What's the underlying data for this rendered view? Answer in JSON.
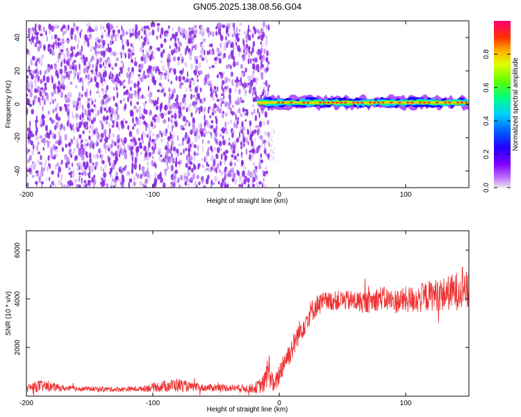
{
  "title": "GN05.2025.138.08.56.G04",
  "colors": {
    "trace": "#ee3333",
    "noise_cloud": "#8a2be2",
    "colormap": [
      "#e8e8e8",
      "#b000ff",
      "#2200ff",
      "#00bfff",
      "#00ff66",
      "#d8ff00",
      "#ffae00",
      "#ff2020",
      "#ff007f"
    ]
  },
  "chart_data": [
    {
      "type": "heatmap",
      "name": "spectrogram",
      "xlabel": "Height of straight line (km)",
      "ylabel": "Frequency (Hz)",
      "xlim": [
        -200,
        150
      ],
      "ylim": [
        -50,
        50
      ],
      "xticks": [
        -200,
        -100,
        0,
        100
      ],
      "yticks": [
        -40,
        -20,
        0,
        20,
        40
      ],
      "colorbar": {
        "label": "Normalized spectral amplitude",
        "range": [
          0,
          1
        ],
        "ticks": [
          "0.0",
          "0.2",
          "0.4",
          "0.6",
          "0.8"
        ],
        "tick_values": [
          0,
          0.2,
          0.4,
          0.6,
          0.8
        ]
      },
      "regions": [
        {
          "desc": "broadband noise",
          "x_range": [
            -200,
            -8
          ],
          "y_range": [
            -50,
            48
          ],
          "amplitude": 0.08
        },
        {
          "desc": "carrier line",
          "x_range": [
            -18,
            150
          ],
          "freq": 1,
          "peak_amplitude": 0.95
        }
      ]
    },
    {
      "type": "line",
      "name": "snr",
      "xlabel": "Height of straight line (km)",
      "ylabel": "SNR (10 * v/v)",
      "xlim": [
        -200,
        150
      ],
      "ylim": [
        0,
        6800
      ],
      "xticks": [
        -200,
        -100,
        0,
        100
      ],
      "yticks": [
        2000,
        4000,
        6000
      ],
      "series": [
        {
          "x": [
            -200,
            -190,
            -180,
            -170,
            -150,
            -130,
            -110,
            -90,
            -80,
            -70,
            -60,
            -50,
            -40,
            -30,
            -20,
            -12,
            -10,
            -8,
            -6,
            -4,
            -2,
            0,
            2,
            4,
            6,
            8,
            10,
            12,
            15,
            20,
            25,
            30,
            35,
            40,
            50,
            60,
            70,
            80,
            90,
            100,
            110,
            120,
            130,
            140,
            145,
            150
          ],
          "y": [
            320,
            420,
            380,
            320,
            300,
            280,
            300,
            420,
            460,
            380,
            340,
            360,
            340,
            320,
            320,
            500,
            900,
            1100,
            700,
            350,
            650,
            900,
            1200,
            1450,
            1600,
            1750,
            1950,
            2150,
            2550,
            3000,
            3450,
            3750,
            3850,
            3900,
            3950,
            3900,
            3850,
            4050,
            3900,
            3950,
            4000,
            4150,
            4200,
            4300,
            4600,
            4200
          ],
          "noise_amplitude": [
            150,
            250,
            180,
            120,
            100,
            100,
            110,
            250,
            300,
            180,
            150,
            160,
            150,
            150,
            200,
            400,
            600,
            700,
            500,
            250,
            400,
            500,
            500,
            500,
            500,
            500,
            500,
            500,
            500,
            500,
            500,
            450,
            450,
            400,
            400,
            450,
            450,
            500,
            500,
            550,
            600,
            650,
            700,
            800,
            900,
            700
          ]
        }
      ]
    }
  ]
}
